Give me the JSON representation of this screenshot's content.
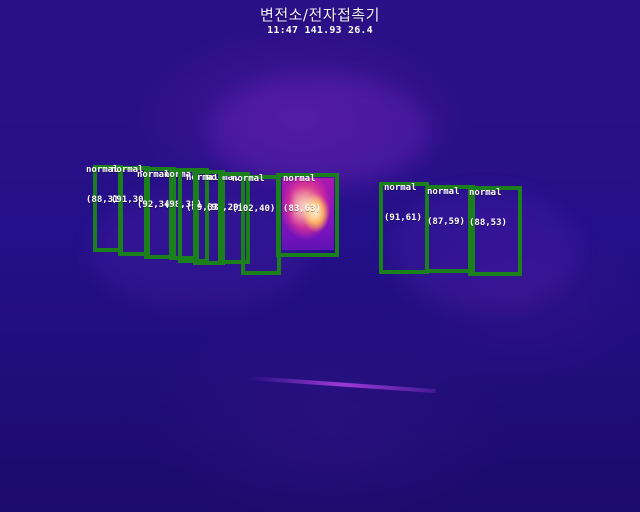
{
  "header": {
    "title": "변전소/전자접촉기",
    "readout": "11:47 141.93 26.4"
  },
  "detections": [
    {
      "status": "normal",
      "coords": "(88,31)"
    },
    {
      "status": "normal",
      "coords": "(91,30)"
    },
    {
      "status": "normal",
      "coords": "(92,34)"
    },
    {
      "status": "normal",
      "coords": "(98,38)"
    },
    {
      "status": "normal",
      "coords": "(89,33)"
    },
    {
      "status": "normal",
      "coords": "(91,29)"
    },
    {
      "status": "normal",
      "coords": "(102,40)"
    },
    {
      "status": "normal",
      "coords": "(83,63)"
    },
    {
      "status": "normal",
      "coords": "(91,61)"
    },
    {
      "status": "normal",
      "coords": "(87,59)"
    },
    {
      "status": "normal",
      "coords": "(88,53)"
    }
  ],
  "colors": {
    "box": "#1b7f1b",
    "label": "#ffffff"
  }
}
